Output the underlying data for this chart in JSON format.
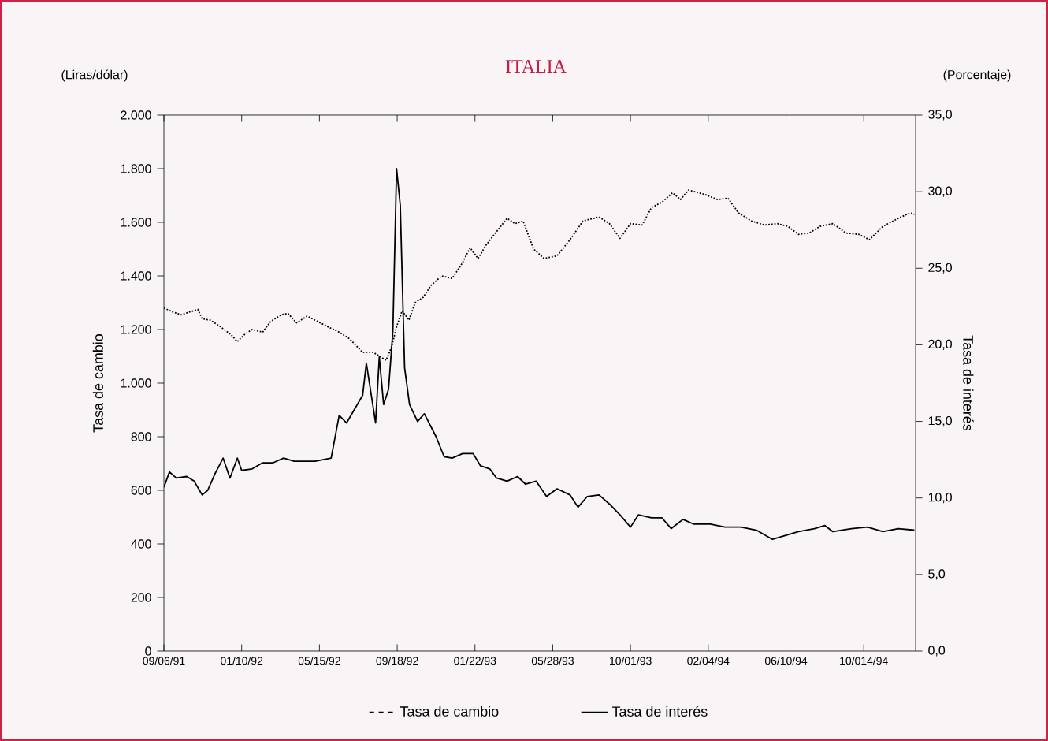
{
  "chart_data": {
    "type": "line",
    "title": "ITALIA",
    "ylabel": "Tasa de cambio",
    "y2label": "Tasa de interés",
    "annotations": [
      "(Liras/dólar)",
      "(Porcentaje)"
    ],
    "xlim": [
      "1991-09-06",
      "1995-01-06"
    ],
    "xticks": [
      {
        "value": "1991-09-06",
        "label": "09/06/91"
      },
      {
        "value": "1992-01-10",
        "label": "01/10/92"
      },
      {
        "value": "1992-05-15",
        "label": "05/15/92"
      },
      {
        "value": "1992-09-18",
        "label": "09/18/92"
      },
      {
        "value": "1993-01-22",
        "label": "01/22/93"
      },
      {
        "value": "1993-05-28",
        "label": "05/28/93"
      },
      {
        "value": "1993-10-01",
        "label": "10/01/93"
      },
      {
        "value": "1994-02-04",
        "label": "02/04/94"
      },
      {
        "value": "1994-06-10",
        "label": "06/10/94"
      },
      {
        "value": "1994-10-14",
        "label": "10/014/94"
      }
    ],
    "ylim": [
      0,
      2000
    ],
    "yticks": [
      0,
      {
        "value": 200,
        "label": "200"
      },
      {
        "value": 400,
        "label": "400"
      },
      {
        "value": 600,
        "label": "600"
      },
      {
        "value": 800,
        "label": "800"
      },
      {
        "value": 1000,
        "label": "1.000"
      },
      {
        "value": 1200,
        "label": "1.200"
      },
      {
        "value": 1400,
        "label": "1.400"
      },
      {
        "value": 1600,
        "label": "1.600"
      },
      {
        "value": 1800,
        "label": "1.800"
      },
      {
        "value": 2000,
        "label": "2.000"
      }
    ],
    "y2lim": [
      0,
      35
    ],
    "y2ticks": [
      {
        "value": 0,
        "label": "0,0"
      },
      {
        "value": 5,
        "label": "5,0"
      },
      {
        "value": 10,
        "label": "10,0"
      },
      {
        "value": 15,
        "label": "15,0"
      },
      {
        "value": 20,
        "label": "20,0"
      },
      {
        "value": 25,
        "label": "25,0"
      },
      {
        "value": 30,
        "label": "30,0"
      },
      {
        "value": 35,
        "label": "35,0"
      }
    ],
    "grid": false,
    "legend": "bottom",
    "series": [
      {
        "name": "Tasa de cambio",
        "color": "#000000",
        "line_style": "dotted",
        "x": [
          "1991-09-06",
          "1991-09-21",
          "1991-10-04",
          "1991-10-17",
          "1991-10-31",
          "1991-11-07",
          "1991-11-20",
          "1991-12-07",
          "1991-12-24",
          "1992-01-03",
          "1992-01-14",
          "1992-01-27",
          "1992-02-13",
          "1992-02-26",
          "1992-03-14",
          "1992-03-25",
          "1992-04-08",
          "1992-04-25",
          "1992-05-12",
          "1992-05-29",
          "1992-06-16",
          "1992-07-03",
          "1992-07-24",
          "1992-08-10",
          "1992-08-31",
          "1992-09-09",
          "1992-09-17",
          "1992-09-26",
          "1992-10-07",
          "1992-10-17",
          "1992-10-30",
          "1992-11-12",
          "1992-11-29",
          "1992-12-16",
          "1993-01-02",
          "1993-01-14",
          "1993-01-27",
          "1993-02-09",
          "1993-02-26",
          "1993-03-15",
          "1993-03-28",
          "1993-04-10",
          "1993-04-27",
          "1993-05-14",
          "1993-06-04",
          "1993-06-25",
          "1993-07-16",
          "1993-08-11",
          "1993-08-28",
          "1993-09-14",
          "1993-10-01",
          "1993-10-20",
          "1993-11-04",
          "1993-11-21",
          "1993-12-08",
          "1993-12-21",
          "1994-01-03",
          "1994-01-28",
          "1994-02-19",
          "1994-03-08",
          "1994-03-25",
          "1994-04-15",
          "1994-05-06",
          "1994-05-27",
          "1994-06-13",
          "1994-06-30",
          "1994-07-18",
          "1994-08-04",
          "1994-08-25",
          "1994-09-15",
          "1994-10-06",
          "1994-10-23",
          "1994-11-14",
          "1994-12-09",
          "1994-12-28",
          "1995-01-04"
        ],
        "values": [
          1280,
          1265,
          1255,
          1265,
          1275,
          1240,
          1235,
          1210,
          1180,
          1155,
          1180,
          1200,
          1190,
          1230,
          1255,
          1260,
          1225,
          1250,
          1230,
          1210,
          1190,
          1165,
          1115,
          1115,
          1085,
          1135,
          1210,
          1270,
          1235,
          1300,
          1320,
          1365,
          1400,
          1390,
          1450,
          1505,
          1465,
          1515,
          1565,
          1615,
          1595,
          1605,
          1500,
          1465,
          1475,
          1535,
          1605,
          1620,
          1595,
          1540,
          1595,
          1590,
          1655,
          1675,
          1710,
          1685,
          1720,
          1705,
          1685,
          1690,
          1635,
          1605,
          1590,
          1595,
          1585,
          1555,
          1560,
          1585,
          1595,
          1560,
          1555,
          1535,
          1585,
          1615,
          1635,
          1630
        ]
      },
      {
        "name": "Tasa de interés",
        "color": "#000000",
        "line_style": "solid",
        "axis": "y2",
        "x": [
          "1991-09-06",
          "1991-09-15",
          "1991-09-26",
          "1991-10-13",
          "1991-10-25",
          "1991-11-07",
          "1991-11-16",
          "1991-11-28",
          "1991-12-11",
          "1991-12-22",
          "1992-01-03",
          "1992-01-10",
          "1992-01-27",
          "1992-02-13",
          "1992-03-01",
          "1992-03-18",
          "1992-04-04",
          "1992-05-08",
          "1992-06-03",
          "1992-06-16",
          "1992-06-28",
          "1992-07-24",
          "1992-07-30",
          "1992-08-14",
          "1992-08-20",
          "1992-08-27",
          "1992-09-04",
          "1992-09-11",
          "1992-09-17",
          "1992-09-23",
          "1992-09-30",
          "1992-10-08",
          "1992-10-21",
          "1992-11-01",
          "1992-11-20",
          "1992-12-03",
          "1992-12-16",
          "1993-01-02",
          "1993-01-19",
          "1993-01-31",
          "1993-02-15",
          "1993-02-26",
          "1993-03-15",
          "1993-04-01",
          "1993-04-14",
          "1993-05-01",
          "1993-05-18",
          "1993-06-04",
          "1993-06-25",
          "1993-07-08",
          "1993-07-23",
          "1993-08-11",
          "1993-08-28",
          "1993-09-14",
          "1993-10-01",
          "1993-10-14",
          "1993-11-04",
          "1993-11-21",
          "1993-12-06",
          "1993-12-25",
          "1994-01-11",
          "1994-02-06",
          "1994-03-03",
          "1994-03-29",
          "1994-04-23",
          "1994-05-19",
          "1994-06-13",
          "1994-06-30",
          "1994-07-26",
          "1994-08-12",
          "1994-08-25",
          "1994-09-24",
          "1994-10-20",
          "1994-11-14",
          "1994-12-09",
          "1995-01-04"
        ],
        "values": [
          10.7,
          11.7,
          11.3,
          11.4,
          11.1,
          10.2,
          10.5,
          11.6,
          12.6,
          11.3,
          12.6,
          11.8,
          11.9,
          12.3,
          12.3,
          12.6,
          12.4,
          12.4,
          12.6,
          15.4,
          14.9,
          16.7,
          18.8,
          14.9,
          19.2,
          16.1,
          17.1,
          20.9,
          31.5,
          29.1,
          18.5,
          16.1,
          15.0,
          15.5,
          14.0,
          12.7,
          12.6,
          12.9,
          12.9,
          12.1,
          11.9,
          11.3,
          11.1,
          11.4,
          10.9,
          11.1,
          10.1,
          10.6,
          10.2,
          9.4,
          10.1,
          10.2,
          9.6,
          8.9,
          8.1,
          8.9,
          8.7,
          8.7,
          8.0,
          8.6,
          8.3,
          8.3,
          8.1,
          8.1,
          7.9,
          7.3,
          7.6,
          7.8,
          8.0,
          8.2,
          7.8,
          8.0,
          8.1,
          7.8,
          8.0,
          7.9
        ]
      }
    ]
  }
}
